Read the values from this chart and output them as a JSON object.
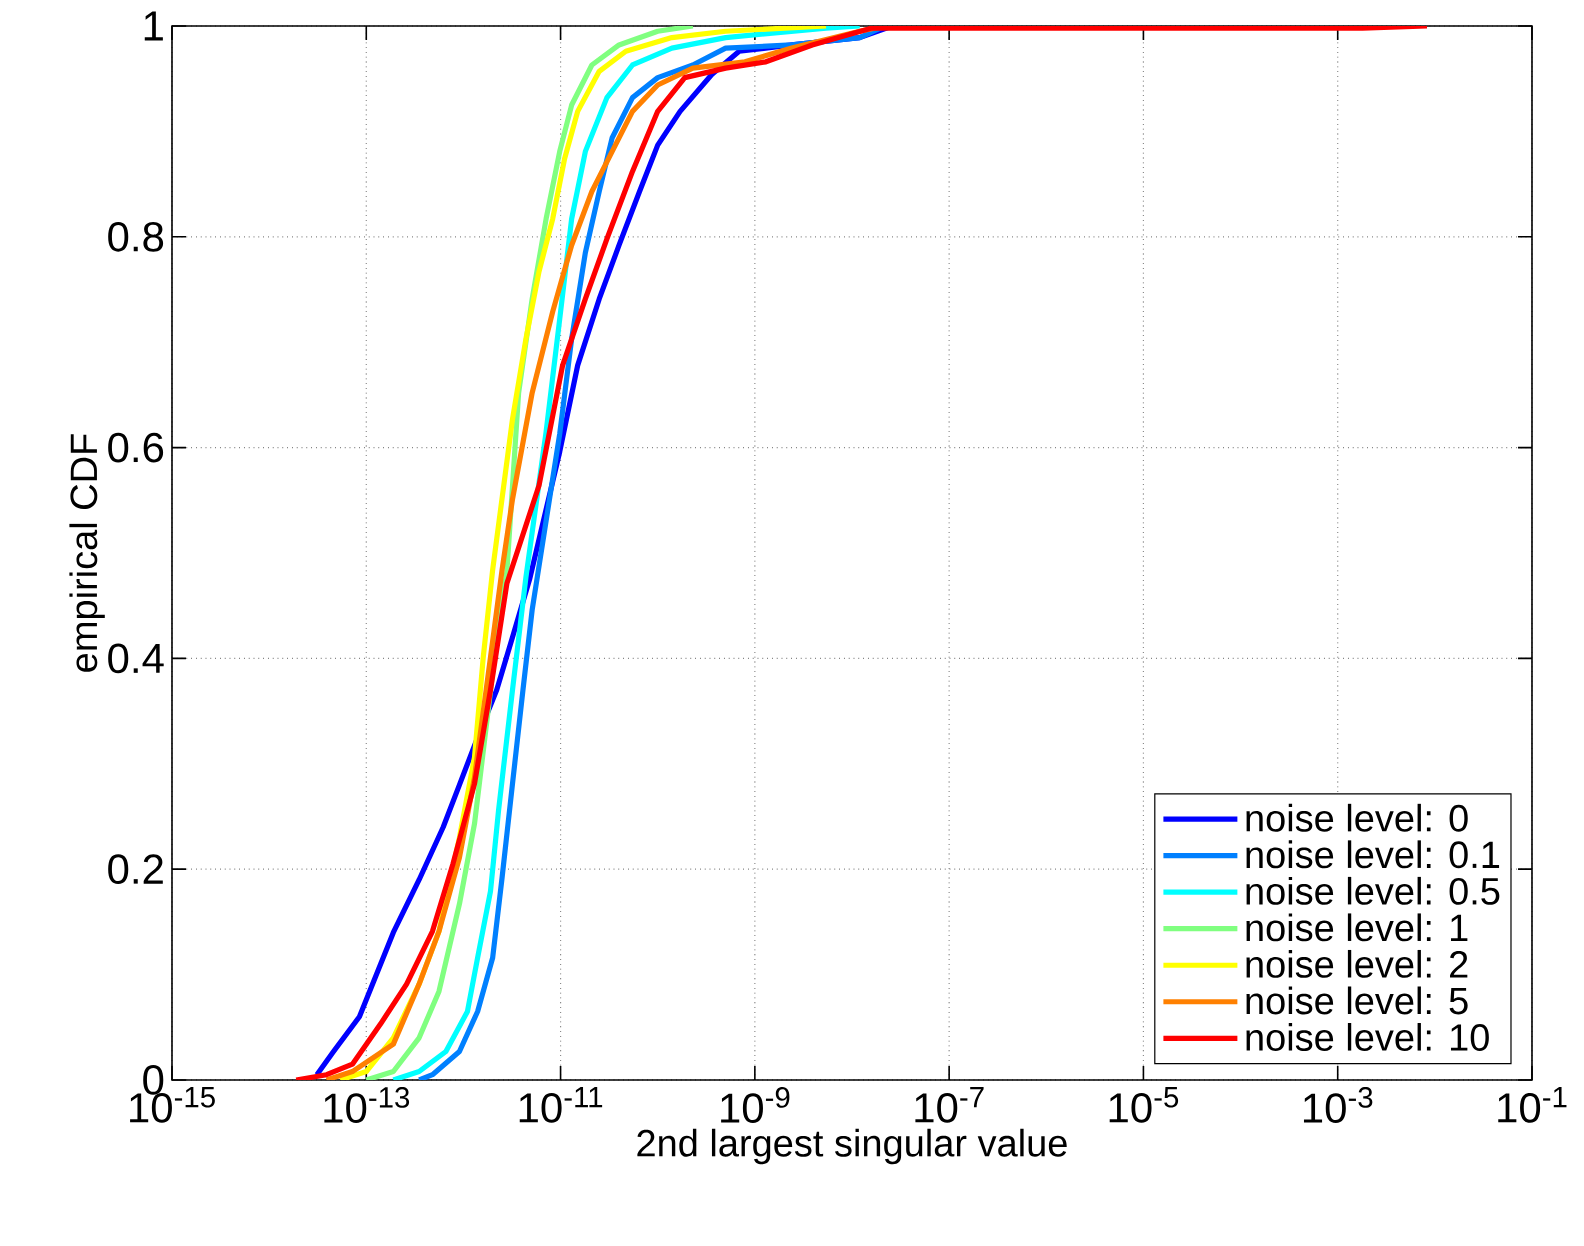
{
  "chart_data": {
    "type": "line",
    "xlabel": "2nd largest singular value",
    "ylabel": "empirical CDF",
    "log": "x",
    "grid": true,
    "legend": "bottom right",
    "marker": "none",
    "line_style": "solid",
    "xlim": [
      1e-15,
      0.1
    ],
    "ylim": [
      0,
      1
    ],
    "xticks": [
      {
        "value": 1e-15,
        "label": "10$^{-15}$"
      },
      {
        "value": 1e-13,
        "label": "10$^{-13}$"
      },
      {
        "value": 1e-11,
        "label": "10$^{-11}$"
      },
      {
        "value": 1e-09,
        "label": "10$^{-9}$"
      },
      {
        "value": 1e-07,
        "label": "10$^{-7}$"
      },
      {
        "value": 1e-05,
        "label": "10$^{-5}$"
      },
      {
        "value": 0.001,
        "label": "10$^{-3}$"
      },
      {
        "value": 0.1,
        "label": "10$^{-1}$"
      }
    ],
    "yticks": [
      0,
      0.2,
      0.4,
      0.6,
      0.8,
      1
    ],
    "series": [
      {
        "name": "noise level: 0",
        "color": "#0000ff",
        "x": [
          3.1e-14,
          4.6e-14,
          8.5e-14,
          1.9e-13,
          3.5e-13,
          6.2e-13,
          9.1e-13,
          1.4e-12,
          2.2e-12,
          3.2e-12,
          4.8e-12,
          9.8e-12,
          1.5e-11,
          2.5e-11,
          4e-11,
          6.5e-11,
          1e-10,
          1.7e-10,
          3.6e-10,
          6.9e-10,
          2.4e-09,
          1.2e-08,
          2.6e-08
        ],
        "values": [
          0.005,
          0.027,
          0.06,
          0.14,
          0.19,
          0.24,
          0.28,
          0.325,
          0.37,
          0.42,
          0.475,
          0.596,
          0.678,
          0.741,
          0.792,
          0.843,
          0.887,
          0.919,
          0.954,
          0.976,
          0.982,
          0.989,
          1.0
        ]
      },
      {
        "name": "noise level: 0.1",
        "color": "#0080ff",
        "x": [
          3.5e-13,
          4.8e-13,
          9.1e-13,
          1.4e-12,
          2e-12,
          2.5e-12,
          3.2e-12,
          4.1e-12,
          5.1e-12,
          9.8e-12,
          1.3e-11,
          1.8e-11,
          2.5e-11,
          3.4e-11,
          5.5e-11,
          1e-10,
          2.3e-10,
          5e-10,
          2.4e-09,
          1.2e-08,
          2.2e-08
        ],
        "values": [
          0,
          0.005,
          0.027,
          0.065,
          0.116,
          0.192,
          0.281,
          0.37,
          0.446,
          0.613,
          0.703,
          0.785,
          0.843,
          0.894,
          0.932,
          0.951,
          0.963,
          0.979,
          0.982,
          0.989,
          1.0
        ]
      },
      {
        "name": "noise level: 0.5",
        "color": "#00ffff",
        "x": [
          1.9e-13,
          3.5e-13,
          6.6e-13,
          1.1e-12,
          1.4e-12,
          1.9e-12,
          2.3e-12,
          3.2e-12,
          4.4e-12,
          7.1e-12,
          9.8e-12,
          1.3e-11,
          1.8e-11,
          3e-11,
          5.5e-11,
          1.4e-10,
          5e-10,
          5.4e-09,
          1.2e-08
        ],
        "values": [
          0,
          0.008,
          0.027,
          0.065,
          0.116,
          0.179,
          0.256,
          0.37,
          0.477,
          0.615,
          0.722,
          0.817,
          0.881,
          0.932,
          0.963,
          0.979,
          0.989,
          0.998,
          1.0
        ]
      },
      {
        "name": "noise level: 1",
        "color": "#80ff80",
        "x": [
          1e-13,
          1.9e-13,
          3.5e-13,
          5.6e-13,
          9.1e-13,
          1.3e-12,
          1.7e-12,
          2.3e-12,
          2.8e-12,
          3.7e-12,
          5.1e-12,
          7.1e-12,
          9.8e-12,
          1.3e-11,
          2.1e-11,
          4e-11,
          1e-10,
          2.3e-10
        ],
        "values": [
          0,
          0.008,
          0.04,
          0.084,
          0.167,
          0.243,
          0.332,
          0.433,
          0.482,
          0.652,
          0.741,
          0.817,
          0.881,
          0.925,
          0.963,
          0.982,
          0.995,
          1.0
        ]
      },
      {
        "name": "noise level: 2",
        "color": "#ffff00",
        "x": [
          5.4e-14,
          1e-13,
          1.9e-13,
          3.5e-13,
          5.6e-13,
          9.1e-13,
          1.3e-12,
          1.6e-12,
          2e-12,
          3.2e-12,
          4.4e-12,
          6e-12,
          8.3e-12,
          1.1e-11,
          1.5e-11,
          2.5e-11,
          4.7e-11,
          1.4e-10,
          5e-10,
          5.4e-09
        ],
        "values": [
          0,
          0.008,
          0.04,
          0.091,
          0.141,
          0.23,
          0.306,
          0.401,
          0.484,
          0.627,
          0.703,
          0.767,
          0.817,
          0.874,
          0.919,
          0.957,
          0.976,
          0.989,
          0.995,
          1.0
        ]
      },
      {
        "name": "noise level: 5",
        "color": "#ff8000",
        "x": [
          3.9e-14,
          7.2e-14,
          1.9e-13,
          3.5e-13,
          5.6e-13,
          9.1e-13,
          1.3e-12,
          1.9e-12,
          2.5e-12,
          3.2e-12,
          5.1e-12,
          8.3e-12,
          1.3e-11,
          2.1e-11,
          3.4e-11,
          5.5e-11,
          1e-10,
          2.3e-10,
          7.9e-10,
          2.4e-09,
          1.2e-08,
          2.2e-08
        ],
        "values": [
          0,
          0.008,
          0.034,
          0.091,
          0.141,
          0.211,
          0.287,
          0.401,
          0.484,
          0.551,
          0.652,
          0.729,
          0.792,
          0.843,
          0.881,
          0.919,
          0.944,
          0.96,
          0.966,
          0.979,
          0.995,
          1.0
        ]
      },
      {
        "name": "noise level: 10",
        "color": "#ff0000",
        "x": [
          1.9e-14,
          3.9e-14,
          7.2e-14,
          1.4e-13,
          2.6e-13,
          4.8e-13,
          7.8e-13,
          1.3e-12,
          1.9e-12,
          2.8e-12,
          6e-12,
          1.05e-11,
          1.8e-11,
          3e-11,
          5.5e-11,
          1e-10,
          1.9e-10,
          5e-10,
          1.3e-09,
          3.9e-09,
          1.6e-08,
          0.0018,
          0.0083
        ],
        "values": [
          0,
          0.005,
          0.015,
          0.053,
          0.091,
          0.141,
          0.205,
          0.281,
          0.37,
          0.471,
          0.564,
          0.678,
          0.741,
          0.798,
          0.862,
          0.919,
          0.951,
          0.96,
          0.966,
          0.982,
          0.998,
          0.998,
          1.0
        ]
      }
    ]
  }
}
